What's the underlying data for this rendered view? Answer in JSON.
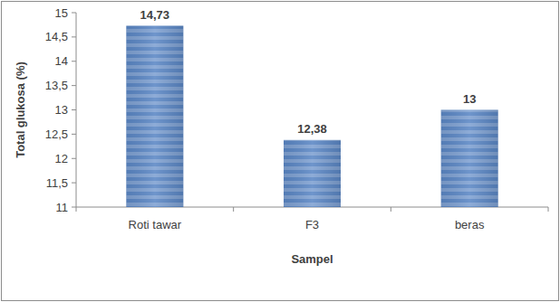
{
  "chart_data": {
    "type": "bar",
    "x_label": "Sampel",
    "y_label": "Total glukosa (%)",
    "categories": [
      "Roti tawar",
      "F3",
      "beras"
    ],
    "values": [
      14.73,
      12.38,
      13
    ],
    "value_labels": [
      "14,73",
      "12,38",
      "13"
    ],
    "data_labels": true,
    "color": "#5b87c5",
    "ylim": [
      11,
      15
    ],
    "yticks": [
      11,
      {
        "value": 11.5,
        "label": "11,5"
      },
      12,
      {
        "value": 12.5,
        "label": "12,5"
      },
      13,
      {
        "value": 13.5,
        "label": "13,5"
      },
      14,
      {
        "value": 14.5,
        "label": "14,5"
      },
      15
    ],
    "grid": false
  }
}
